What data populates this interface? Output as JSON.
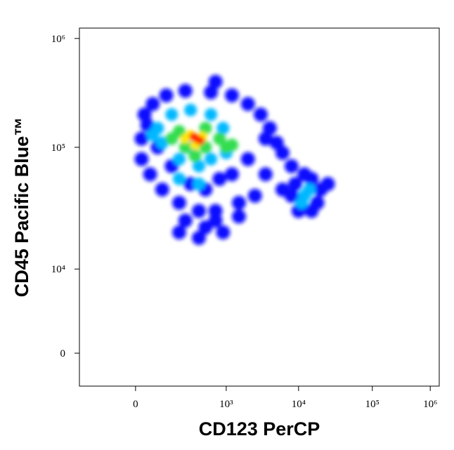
{
  "chart_data": {
    "type": "density",
    "xlabel": "CD123 PerCP",
    "ylabel": "CD45 Pacific Blue™",
    "xscale": "biexponential",
    "yscale": "biexponential",
    "xlim": [
      -300,
      1400000
    ],
    "ylim": [
      -400,
      1250000
    ],
    "xticks": [
      0,
      {
        "value": 1000,
        "label": "10³"
      },
      {
        "value": 10000,
        "label": "10⁴"
      },
      {
        "value": 100000,
        "label": "10⁵"
      },
      {
        "value": 1000000,
        "label": "10⁶"
      }
    ],
    "yticks": [
      0,
      {
        "value": 10000,
        "label": "10⁴"
      },
      {
        "value": 100000,
        "label": "10⁵"
      },
      {
        "value": 1000000,
        "label": "10⁶"
      }
    ],
    "series": [
      {
        "color": "#1010ff",
        "x": [
          30,
          60,
          120,
          250,
          600,
          1200,
          2000,
          3000,
          4000,
          5000,
          6000,
          20,
          20,
          50,
          100,
          200,
          400,
          700,
          1500,
          2500,
          3500,
          8000,
          40,
          80,
          150,
          300,
          500,
          800,
          1200,
          2000,
          250,
          500,
          900,
          400,
          200,
          700,
          1500,
          8000,
          10000,
          15000,
          20000,
          25000,
          15000,
          9000,
          6000,
          12000,
          18000,
          700,
          3500
        ],
        "y": [
          200000,
          250000,
          300000,
          330000,
          320000,
          300000,
          250000,
          200000,
          150000,
          110000,
          90000,
          120000,
          80000,
          60000,
          45000,
          35000,
          30000,
          30000,
          35000,
          40000,
          60000,
          70000,
          160000,
          100000,
          70000,
          50000,
          45000,
          55000,
          60000,
          80000,
          25000,
          22000,
          20000,
          18000,
          20000,
          25000,
          27000,
          40000,
          30000,
          30000,
          45000,
          50000,
          55000,
          50000,
          45000,
          60000,
          35000,
          400000,
          120000
        ]
      },
      {
        "color": "#00b8ff",
        "x": [
          80,
          150,
          300,
          600,
          900,
          100,
          200,
          400,
          600,
          1000,
          300,
          60,
          200,
          400,
          12000,
          14000,
          11000
        ],
        "y": [
          150000,
          200000,
          220000,
          200000,
          150000,
          110000,
          80000,
          70000,
          80000,
          90000,
          100000,
          130000,
          55000,
          50000,
          40000,
          45000,
          35000
        ]
      },
      {
        "color": "#30dd50",
        "x": [
          200,
          250,
          500,
          800,
          1200,
          1000,
          150,
          500,
          350
        ],
        "y": [
          140000,
          100000,
          100000,
          120000,
          105000,
          100000,
          120000,
          150000,
          85000
        ]
      },
      {
        "color": "#ffe800",
        "x": [
          300,
          450,
          350,
          250
        ],
        "y": [
          130000,
          125000,
          105000,
          120000
        ]
      },
      {
        "color": "#ff2000",
        "x": [
          370,
          330,
          420
        ],
        "y": [
          120000,
          125000,
          115000
        ]
      }
    ]
  }
}
